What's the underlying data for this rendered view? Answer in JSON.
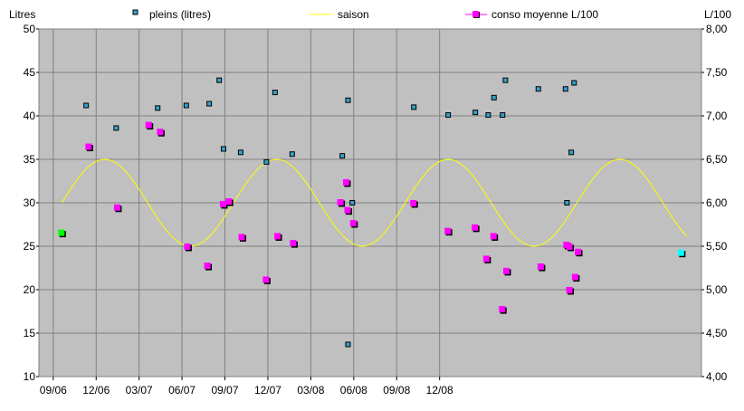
{
  "chart_data": {
    "type": "scatter",
    "title": "",
    "x_tick_labels": [
      "09/06",
      "12/06",
      "03/07",
      "06/07",
      "09/07",
      "12/07",
      "03/08",
      "06/08",
      "09/08",
      "12/08"
    ],
    "y_left": {
      "label": "Litres",
      "min": 10,
      "max": 50,
      "step": 5,
      "tick_labels": [
        "10",
        "15",
        "20",
        "25",
        "30",
        "35",
        "40",
        "45",
        "50"
      ]
    },
    "y_right": {
      "label": "L/100",
      "min": 4.0,
      "max": 8.0,
      "step": 0.5,
      "tick_labels": [
        "4,00",
        "4,50",
        "5,00",
        "5,50",
        "6,00",
        "6,50",
        "7,00",
        "7,50",
        "8,00"
      ]
    },
    "grid": true,
    "legend_position": "top",
    "legend": {
      "pleins": "pleins (litres)",
      "saison": "saison",
      "conso": "conso moyenne L/100"
    },
    "colors": {
      "plot_bg": "#c0c0c0",
      "pleins": "#33a1c9",
      "saison": "#ffff00",
      "conso": "#ff00ff",
      "conso_first": "#00ff00",
      "conso_last": "#00ffff",
      "shadow": "#000000",
      "grid": "#808080"
    },
    "series": [
      {
        "name": "pleins (litres)",
        "axis": "left",
        "marker": "small-square",
        "points": [
          [
            3.3,
            41.2
          ],
          [
            5.4,
            38.6
          ],
          [
            8.3,
            40.9
          ],
          [
            10.3,
            41.2
          ],
          [
            11.9,
            41.4
          ],
          [
            12.6,
            44.1
          ],
          [
            12.9,
            36.2
          ],
          [
            14.1,
            35.8
          ],
          [
            15.9,
            34.7
          ],
          [
            16.5,
            42.7
          ],
          [
            17.7,
            35.6
          ],
          [
            21.2,
            35.4
          ],
          [
            21.6,
            41.8
          ],
          [
            21.6,
            13.7
          ],
          [
            21.9,
            30.0
          ],
          [
            26.2,
            41.0
          ],
          [
            28.6,
            40.1
          ],
          [
            30.5,
            40.4
          ],
          [
            31.4,
            40.1
          ],
          [
            31.8,
            42.1
          ],
          [
            32.4,
            40.1
          ],
          [
            32.6,
            44.1
          ],
          [
            34.9,
            43.1
          ],
          [
            36.8,
            43.1
          ],
          [
            36.9,
            30.0
          ],
          [
            37.2,
            35.8
          ],
          [
            37.4,
            43.8
          ]
        ]
      },
      {
        "name": "saison",
        "axis": "right",
        "type": "line",
        "function": "6.0 + 0.5*sin(2*pi*(x - 1.6)/12)",
        "x_start": 1.6,
        "x_end": 45.3
      },
      {
        "name": "conso moyenne L/100",
        "axis": "right",
        "marker": "square",
        "points": [
          [
            1.6,
            5.65
          ],
          [
            3.5,
            6.64
          ],
          [
            5.5,
            5.94
          ],
          [
            7.7,
            6.89
          ],
          [
            8.5,
            6.81
          ],
          [
            10.4,
            5.49
          ],
          [
            11.8,
            5.27
          ],
          [
            12.9,
            5.98
          ],
          [
            13.3,
            6.01
          ],
          [
            14.2,
            5.6
          ],
          [
            15.9,
            5.11
          ],
          [
            16.7,
            5.61
          ],
          [
            17.8,
            5.53
          ],
          [
            21.1,
            6.0
          ],
          [
            21.5,
            6.23
          ],
          [
            21.6,
            5.91
          ],
          [
            22.0,
            5.76
          ],
          [
            26.2,
            5.99
          ],
          [
            28.6,
            5.67
          ],
          [
            30.5,
            5.71
          ],
          [
            31.3,
            5.35
          ],
          [
            31.8,
            5.61
          ],
          [
            32.4,
            4.77
          ],
          [
            32.7,
            5.21
          ],
          [
            35.1,
            5.26
          ],
          [
            36.9,
            5.51
          ],
          [
            37.1,
            4.99
          ],
          [
            37.1,
            5.49
          ],
          [
            37.5,
            5.14
          ],
          [
            37.7,
            5.43
          ],
          [
            44.9,
            5.42
          ]
        ]
      }
    ]
  }
}
